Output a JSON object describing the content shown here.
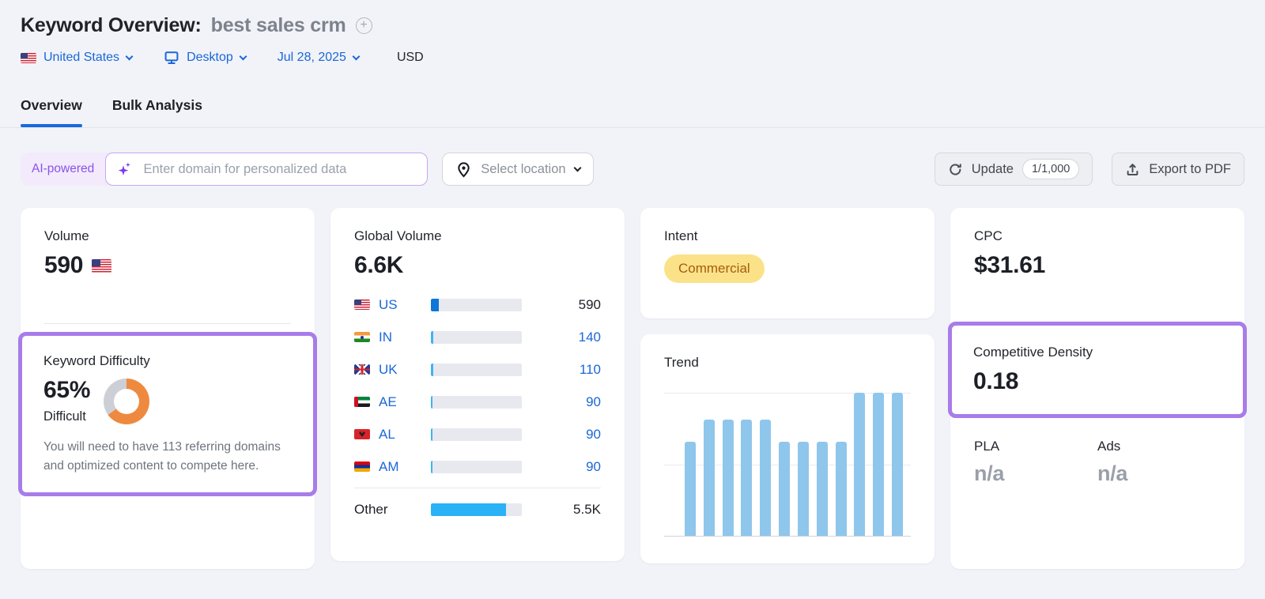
{
  "header": {
    "title": "Keyword Overview:",
    "keyword": "best sales crm",
    "filters": {
      "country": "United States",
      "device": "Desktop",
      "date": "Jul 28, 2025",
      "currency": "USD"
    }
  },
  "tabs": [
    {
      "label": "Overview",
      "active": true
    },
    {
      "label": "Bulk Analysis",
      "active": false
    }
  ],
  "toolbar": {
    "ai_badge": "AI-powered",
    "domain_input_placeholder": "Enter domain for personalized data",
    "location_button": "Select location",
    "update_button": "Update",
    "update_quota": "1/1,000",
    "export_button": "Export to PDF"
  },
  "cards": {
    "volume": {
      "label": "Volume",
      "value": "590",
      "flag": "US"
    },
    "keyword_difficulty": {
      "label": "Keyword Difficulty",
      "value": "65%",
      "percent": 65,
      "level": "Difficult",
      "ring_color": "#ee8a3f",
      "ring_track_color": "#ccd0d6",
      "note": "You will need to have 113 referring domains and optimized content to compete here."
    },
    "global_volume": {
      "label": "Global Volume",
      "value": "6.6K",
      "rows": [
        {
          "code": "US",
          "value": "590",
          "bar_percent": 9,
          "bar_color": "#0d76d8",
          "value_style": "dark"
        },
        {
          "code": "IN",
          "value": "140",
          "bar_percent": 3,
          "bar_color": "#41b1f4",
          "value_style": "blue"
        },
        {
          "code": "UK",
          "value": "110",
          "bar_percent": 2.5,
          "bar_color": "#41b1f4",
          "value_style": "blue"
        },
        {
          "code": "AE",
          "value": "90",
          "bar_percent": 2,
          "bar_color": "#41b1f4",
          "value_style": "blue"
        },
        {
          "code": "AL",
          "value": "90",
          "bar_percent": 2,
          "bar_color": "#41b1f4",
          "value_style": "blue"
        },
        {
          "code": "AM",
          "value": "90",
          "bar_percent": 2,
          "bar_color": "#41b1f4",
          "value_style": "blue"
        }
      ],
      "other_row": {
        "label": "Other",
        "value": "5.5K",
        "bar_percent": 83,
        "bar_color": "#29b2f5",
        "value_style": "dark"
      }
    },
    "intent": {
      "label": "Intent",
      "badge": "Commercial",
      "badge_bg": "#fbe289",
      "badge_text_color": "#a55d0e"
    },
    "trend": {
      "label": "Trend",
      "bar_color": "#8fc6ec"
    },
    "cpc": {
      "label": "CPC",
      "value": "$31.61"
    },
    "competitive_density": {
      "label": "Competitive Density",
      "value": "0.18"
    },
    "pla": {
      "label": "PLA",
      "value": "n/a"
    },
    "ads": {
      "label": "Ads",
      "value": "n/a"
    }
  },
  "highlight_color": "#a87ce9",
  "chart_data": [
    {
      "type": "bar",
      "title": "Trend",
      "x": [
        1,
        2,
        3,
        4,
        5,
        6,
        7,
        8,
        9,
        10,
        11,
        12
      ],
      "values": [
        0.66,
        0.81,
        0.81,
        0.81,
        0.81,
        0.66,
        0.66,
        0.66,
        0.66,
        1.0,
        1.0,
        1.0
      ],
      "ylim": [
        0,
        1
      ],
      "bar_color": "#8fc6ec",
      "grid": "horizontal gridlines at 0, 0.5, 1.0; no axis tick labels shown"
    },
    {
      "type": "bar",
      "title": "Global Volume by country",
      "categories": [
        "US",
        "IN",
        "UK",
        "AE",
        "AL",
        "AM",
        "Other"
      ],
      "values": [
        590,
        140,
        110,
        90,
        90,
        90,
        5500
      ],
      "total_label": "6.6K"
    },
    {
      "type": "pie",
      "title": "Keyword Difficulty donut",
      "labels": [
        "difficult",
        "remaining"
      ],
      "values": [
        65,
        35
      ],
      "colors": [
        "#ee8a3f",
        "#ccd0d6"
      ]
    }
  ]
}
